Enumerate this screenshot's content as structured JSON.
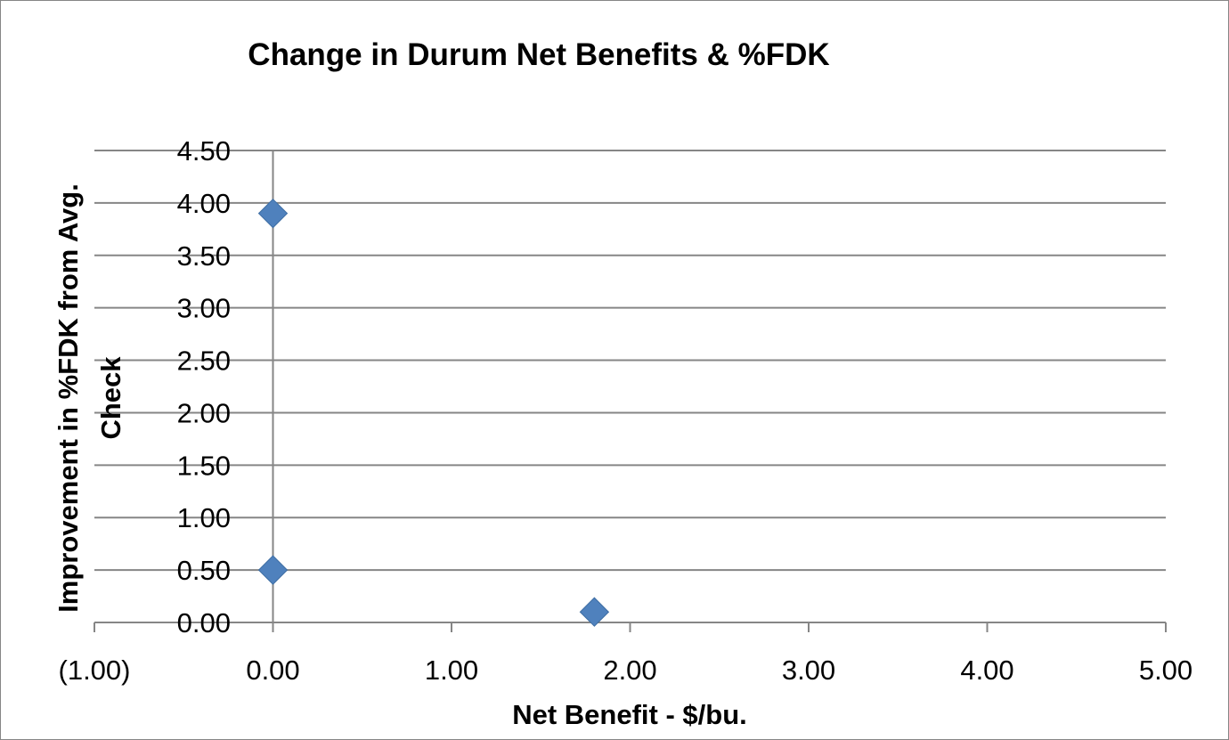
{
  "chart_data": {
    "type": "scatter",
    "title": "Change in Durum Net Benefits & %FDK",
    "xlabel": "Net Benefit - $/bu.",
    "ylabel": "Improvement in %FDK from Avg. Check",
    "xlim": [
      -1.0,
      5.0
    ],
    "ylim": [
      0.0,
      4.5
    ],
    "x_tick_labels": [
      "(1.00)",
      "0.00",
      "1.00",
      "2.00",
      "3.00",
      "4.00",
      "5.00"
    ],
    "x_ticks": [
      -1,
      0,
      1,
      2,
      3,
      4,
      5
    ],
    "y_tick_labels": [
      "0.00",
      "0.50",
      "1.00",
      "1.50",
      "2.00",
      "2.50",
      "3.00",
      "3.50",
      "4.00",
      "4.50"
    ],
    "y_ticks": [
      0,
      0.5,
      1.0,
      1.5,
      2.0,
      2.5,
      3.0,
      3.5,
      4.0,
      4.5
    ],
    "grid": "horizontal",
    "legend": "none",
    "series": [
      {
        "x": [
          0.0,
          0.0,
          1.8
        ],
        "y": [
          3.9,
          0.5,
          0.1
        ]
      }
    ],
    "colors": {
      "marker": "#4f81bd",
      "gridline": "#868686",
      "negative_tick": "#ff0000",
      "text": "#000000"
    },
    "marker_shape": "diamond"
  }
}
